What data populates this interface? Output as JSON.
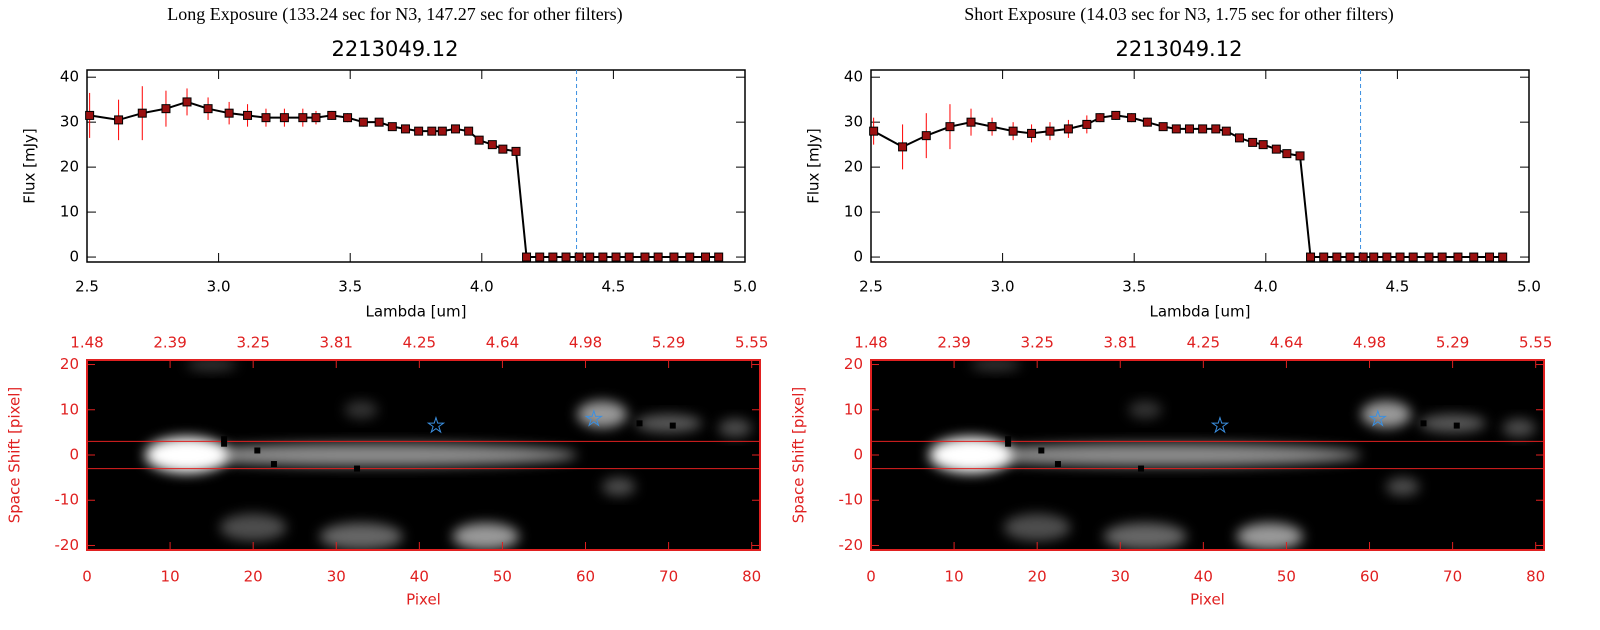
{
  "chart_data": [
    {
      "type": "line",
      "title": "Long Exposure (133.24 sec for N3, 147.27 sec for other filters)",
      "subtitle": "2213049.12",
      "x_label": "Lambda [um]",
      "y_label": "Flux [mJy]",
      "x": [
        2.51,
        2.62,
        2.71,
        2.8,
        2.88,
        2.96,
        3.04,
        3.11,
        3.18,
        3.25,
        3.32,
        3.37,
        3.43,
        3.49,
        3.55,
        3.61,
        3.66,
        3.71,
        3.76,
        3.81,
        3.85,
        3.9,
        3.95,
        3.99,
        4.04,
        4.08,
        4.13,
        4.17,
        4.22,
        4.27,
        4.32,
        4.37,
        4.41,
        4.46,
        4.51,
        4.56,
        4.62,
        4.67,
        4.73,
        4.79,
        4.85,
        4.9
      ],
      "values": [
        31.5,
        30.5,
        32,
        33,
        34.5,
        33,
        32,
        31.5,
        31,
        31,
        31,
        31,
        31.5,
        31,
        30,
        30,
        29,
        28.5,
        28,
        28,
        28,
        28.5,
        28,
        26,
        25,
        24,
        23.5,
        0,
        0,
        0,
        0,
        0,
        0,
        0,
        0,
        0,
        0,
        0,
        0,
        0,
        0,
        0
      ],
      "errors": [
        5,
        4.5,
        6,
        4,
        3,
        2.5,
        2.5,
        2.5,
        2,
        2,
        2,
        1.5,
        1,
        1,
        1,
        0.8,
        0.8,
        0.8,
        0.8,
        0.8,
        0.8,
        0.8,
        0.8,
        0.8,
        0.8,
        0.8,
        0.8,
        0,
        0,
        0,
        0,
        0,
        0,
        0,
        0,
        0,
        0,
        0,
        0,
        0,
        0,
        0
      ],
      "color": "#000000",
      "marker_color": "#9b1010",
      "error_color": "#ff0000",
      "vline": 4.36,
      "vline_color": "#3b8fe0",
      "xlim": [
        2.5,
        5.0
      ],
      "ylim": [
        -1.1,
        41.6
      ],
      "xticks": [
        2.5,
        {
          "value": 3,
          "label": "3.0"
        },
        3.5,
        {
          "value": 4,
          "label": "4.0"
        },
        4.5,
        {
          "value": 5,
          "label": "5.0"
        }
      ],
      "yticks": [
        0,
        10,
        20,
        30,
        40
      ],
      "grid": false
    },
    {
      "type": "image",
      "x_label": "Pixel",
      "y_label": "Space Shift [pixel]",
      "axis_color": "#e02020",
      "xlim": [
        0,
        81
      ],
      "ylim": [
        -21,
        21
      ],
      "xticks": [
        0,
        10,
        20,
        30,
        40,
        50,
        60,
        70,
        80
      ],
      "yticks": [
        -20,
        -10,
        0,
        10,
        20
      ],
      "x2ticks": [
        {
          "value": 0,
          "label": "1.48"
        },
        {
          "value": 10,
          "label": "2.39"
        },
        {
          "value": 20,
          "label": "3.25"
        },
        {
          "value": 30,
          "label": "3.81"
        },
        {
          "value": 40,
          "label": "4.25"
        },
        {
          "value": 50,
          "label": "4.64"
        },
        {
          "value": 60,
          "label": "4.98"
        },
        {
          "value": 70,
          "label": "5.29"
        },
        {
          "value": 80,
          "label": "5.55"
        }
      ],
      "blobs": {
        "x": [
          12,
          35,
          62,
          70,
          48,
          33,
          20,
          64,
          33,
          78,
          15
        ],
        "y": [
          0,
          0,
          9,
          7,
          -18,
          -18,
          -16,
          -7,
          10,
          6,
          20
        ],
        "sx": [
          5,
          24,
          3,
          4,
          4,
          5,
          4,
          2,
          2,
          2,
          3
        ],
        "sy": [
          4,
          2.5,
          3,
          2,
          3,
          3,
          3,
          2,
          2,
          2,
          1.5
        ],
        "amp": [
          1,
          0.55,
          0.6,
          0.35,
          0.6,
          0.4,
          0.3,
          0.3,
          0.2,
          0.3,
          0.2
        ]
      },
      "aperture": [
        -3,
        3
      ],
      "aperture_color": "#e02020",
      "points": {
        "x": [
          16.5,
          16.5,
          20.5,
          22.5,
          32.5,
          66.5,
          70.5
        ],
        "y": [
          3.5,
          2.5,
          1,
          -2,
          -3,
          7,
          6.5
        ]
      },
      "stars": {
        "x": [
          42,
          61
        ],
        "y": [
          6.5,
          8
        ]
      },
      "star_color": "#3b8fe0"
    },
    {
      "type": "line",
      "title": "Short Exposure (14.03 sec for N3, 1.75 sec for other filters)",
      "subtitle": "2213049.12",
      "x_label": "Lambda [um]",
      "y_label": "Flux [mJy]",
      "x": [
        2.51,
        2.62,
        2.71,
        2.8,
        2.88,
        2.96,
        3.04,
        3.11,
        3.18,
        3.25,
        3.32,
        3.37,
        3.43,
        3.49,
        3.55,
        3.61,
        3.66,
        3.71,
        3.76,
        3.81,
        3.85,
        3.9,
        3.95,
        3.99,
        4.04,
        4.08,
        4.13,
        4.17,
        4.22,
        4.27,
        4.32,
        4.37,
        4.41,
        4.46,
        4.51,
        4.56,
        4.62,
        4.67,
        4.73,
        4.79,
        4.85,
        4.9
      ],
      "values": [
        28,
        24.5,
        27,
        29,
        30,
        29,
        28,
        27.5,
        28,
        28.5,
        29.5,
        31,
        31.5,
        31,
        30,
        29,
        28.5,
        28.5,
        28.5,
        28.5,
        28,
        26.5,
        25.5,
        25,
        24,
        23,
        22.5,
        0,
        0,
        0,
        0,
        0,
        0,
        0,
        0,
        0,
        0,
        0,
        0,
        0,
        0,
        0
      ],
      "errors": [
        3,
        5,
        5,
        5,
        3,
        2,
        2,
        2,
        2,
        2,
        2,
        1,
        1,
        1,
        1,
        0.8,
        0.8,
        0.8,
        0.8,
        0.8,
        0.8,
        0.8,
        0.8,
        0.8,
        0.8,
        0.8,
        0.8,
        0,
        0,
        0,
        0,
        0,
        0,
        0,
        0,
        0,
        0,
        0,
        0,
        0,
        0,
        0
      ],
      "color": "#000000",
      "marker_color": "#9b1010",
      "error_color": "#ff0000",
      "vline": 4.36,
      "vline_color": "#3b8fe0",
      "xlim": [
        2.5,
        5.0
      ],
      "ylim": [
        -1.1,
        41.6
      ],
      "xticks": [
        2.5,
        {
          "value": 3,
          "label": "3.0"
        },
        3.5,
        {
          "value": 4,
          "label": "4.0"
        },
        4.5,
        {
          "value": 5,
          "label": "5.0"
        }
      ],
      "yticks": [
        0,
        10,
        20,
        30,
        40
      ],
      "grid": false
    },
    {
      "type": "image",
      "x_label": "Pixel",
      "y_label": "Space Shift [pixel]",
      "axis_color": "#e02020",
      "xlim": [
        0,
        81
      ],
      "ylim": [
        -21,
        21
      ],
      "xticks": [
        0,
        10,
        20,
        30,
        40,
        50,
        60,
        70,
        80
      ],
      "yticks": [
        -20,
        -10,
        0,
        10,
        20
      ],
      "x2ticks": [
        {
          "value": 0,
          "label": "1.48"
        },
        {
          "value": 10,
          "label": "2.39"
        },
        {
          "value": 20,
          "label": "3.25"
        },
        {
          "value": 30,
          "label": "3.81"
        },
        {
          "value": 40,
          "label": "4.25"
        },
        {
          "value": 50,
          "label": "4.64"
        },
        {
          "value": 60,
          "label": "4.98"
        },
        {
          "value": 70,
          "label": "5.29"
        },
        {
          "value": 80,
          "label": "5.55"
        }
      ],
      "blobs": {
        "x": [
          12,
          35,
          62,
          70,
          48,
          33,
          20,
          64,
          33,
          78,
          15
        ],
        "y": [
          0,
          0,
          9,
          7,
          -18,
          -18,
          -16,
          -7,
          10,
          6,
          20
        ],
        "sx": [
          5,
          24,
          3,
          4,
          4,
          5,
          4,
          2,
          2,
          2,
          3
        ],
        "sy": [
          4,
          2.5,
          3,
          2,
          3,
          3,
          3,
          2,
          2,
          2,
          1.5
        ],
        "amp": [
          1,
          0.55,
          0.6,
          0.35,
          0.6,
          0.4,
          0.3,
          0.3,
          0.2,
          0.3,
          0.2
        ]
      },
      "aperture": [
        -3,
        3
      ],
      "aperture_color": "#e02020",
      "points": {
        "x": [
          16.5,
          16.5,
          20.5,
          22.5,
          32.5,
          66.5,
          70.5
        ],
        "y": [
          3.5,
          2.5,
          1,
          -2,
          -3,
          7,
          6.5
        ]
      },
      "stars": {
        "x": [
          42,
          61
        ],
        "y": [
          6.5,
          8
        ]
      },
      "star_color": "#3b8fe0"
    }
  ]
}
